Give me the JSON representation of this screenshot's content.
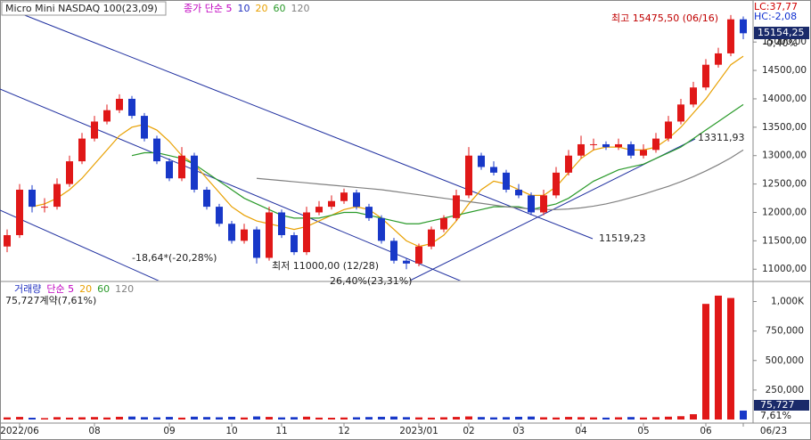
{
  "header": {
    "title": "Micro Mini NASDAQ 100(23,09)",
    "ma_legend": [
      {
        "text": "종가 단순 5",
        "color": "#c000c0"
      },
      {
        "text": "10",
        "color": "#2030c0"
      },
      {
        "text": "20",
        "color": "#e8a000"
      },
      {
        "text": "60",
        "color": "#2a9a2a"
      },
      {
        "text": "120",
        "color": "#808080"
      }
    ]
  },
  "chart_data": {
    "type": "candlestick",
    "up_color": "#e01818",
    "down_color": "#1838c8",
    "open": [
      11400,
      11600,
      12400,
      12100,
      12100,
      12500,
      12900,
      13300,
      13600,
      13800,
      14000,
      13700,
      13300,
      12900,
      12600,
      13000,
      12400,
      12100,
      11800,
      11500,
      11700,
      11200,
      12000,
      11600,
      11300,
      12000,
      12100,
      12200,
      12350,
      12100,
      11900,
      11500,
      11150,
      11100,
      11400,
      11700,
      11900,
      12300,
      13000,
      12800,
      12700,
      12400,
      12300,
      12000,
      12300,
      12700,
      13000,
      13200,
      13200,
      13150,
      13200,
      13000,
      13100,
      13300,
      13600,
      13900,
      14200,
      14600,
      14800,
      15400
    ],
    "high": [
      11700,
      12500,
      12480,
      12250,
      12600,
      13000,
      13400,
      13700,
      13900,
      14080,
      14050,
      13750,
      13350,
      12950,
      13150,
      13050,
      12450,
      12150,
      11850,
      11800,
      11750,
      12100,
      12050,
      11650,
      12100,
      12200,
      12300,
      12420,
      12400,
      12150,
      11950,
      11550,
      11200,
      11450,
      11750,
      11950,
      12400,
      13150,
      13050,
      12900,
      12750,
      12500,
      12350,
      12400,
      12800,
      13100,
      13350,
      13300,
      13250,
      13300,
      13250,
      13200,
      13400,
      13700,
      14000,
      14300,
      14700,
      14900,
      15475.5,
      15450
    ],
    "low": [
      11300,
      11550,
      12000,
      12000,
      12050,
      12450,
      12850,
      13250,
      13550,
      13750,
      13650,
      13250,
      12850,
      12550,
      12550,
      12350,
      12050,
      11750,
      11450,
      11450,
      11100,
      11150,
      11550,
      11250,
      11250,
      11950,
      12050,
      12150,
      12050,
      11850,
      11450,
      11100,
      11000,
      11050,
      11350,
      11650,
      11850,
      12250,
      12750,
      12650,
      12350,
      12250,
      11950,
      11950,
      12250,
      12650,
      12950,
      13100,
      13100,
      13100,
      12950,
      12950,
      13050,
      13250,
      13550,
      13850,
      14150,
      14550,
      14750,
      15050
    ],
    "close": [
      11600,
      12400,
      12100,
      12100,
      12500,
      12900,
      13300,
      13600,
      13800,
      14000,
      13700,
      13300,
      12900,
      12600,
      13000,
      12400,
      12100,
      11800,
      11500,
      11700,
      11200,
      12000,
      11600,
      11300,
      12000,
      12100,
      12200,
      12350,
      12100,
      11900,
      11500,
      11150,
      11100,
      11400,
      11700,
      11900,
      12300,
      13000,
      12800,
      12700,
      12400,
      12300,
      12000,
      12300,
      12700,
      13000,
      13200,
      13200,
      13150,
      13200,
      13000,
      13100,
      13300,
      13600,
      13900,
      14200,
      14600,
      14800,
      15400,
      15154.25
    ],
    "ma_series": [
      {
        "name": "20",
        "color": "#e8a000",
        "values": [
          null,
          null,
          12100,
          12150,
          12250,
          12400,
          12600,
          12850,
          13100,
          13350,
          13500,
          13550,
          13450,
          13250,
          13000,
          12850,
          12600,
          12350,
          12100,
          11950,
          11850,
          11800,
          11750,
          11700,
          11750,
          11850,
          11950,
          12050,
          12100,
          12050,
          11900,
          11700,
          11500,
          11400,
          11450,
          11600,
          11850,
          12150,
          12400,
          12550,
          12500,
          12400,
          12300,
          12300,
          12450,
          12700,
          12950,
          13100,
          13150,
          13150,
          13100,
          13100,
          13150,
          13300,
          13500,
          13750,
          14000,
          14300,
          14600,
          14750
        ]
      },
      {
        "name": "60",
        "color": "#2a9a2a",
        "values": [
          null,
          null,
          null,
          null,
          null,
          null,
          null,
          null,
          null,
          null,
          13000,
          13050,
          13050,
          13000,
          12950,
          12850,
          12700,
          12550,
          12400,
          12250,
          12150,
          12050,
          11950,
          11900,
          11900,
          11900,
          11950,
          12000,
          12000,
          11950,
          11900,
          11850,
          11800,
          11800,
          11850,
          11900,
          11950,
          12000,
          12050,
          12100,
          12100,
          12100,
          12050,
          12100,
          12150,
          12250,
          12400,
          12550,
          12650,
          12750,
          12800,
          12850,
          12950,
          13050,
          13150,
          13300,
          13450,
          13600,
          13750,
          13900
        ]
      },
      {
        "name": "120",
        "color": "#808080",
        "values": [
          null,
          null,
          null,
          null,
          null,
          null,
          null,
          null,
          null,
          null,
          null,
          null,
          null,
          null,
          null,
          null,
          null,
          null,
          null,
          null,
          12600,
          12580,
          12560,
          12540,
          12520,
          12500,
          12480,
          12460,
          12440,
          12420,
          12400,
          12370,
          12340,
          12310,
          12280,
          12250,
          12220,
          12190,
          12160,
          12130,
          12100,
          12080,
          12060,
          12050,
          12050,
          12060,
          12080,
          12110,
          12150,
          12200,
          12260,
          12320,
          12390,
          12460,
          12540,
          12630,
          12730,
          12840,
          12960,
          13100
        ]
      }
    ],
    "ylim": [
      10800,
      15740
    ],
    "yticks": [
      {
        "value": 11000,
        "label": "11000,00"
      },
      {
        "value": 11500,
        "label": "11500,00"
      },
      {
        "value": 12000,
        "label": "12000,00"
      },
      {
        "value": 12500,
        "label": "12500,00"
      },
      {
        "value": 13000,
        "label": "13000,00"
      },
      {
        "value": 13500,
        "label": "13500,00"
      },
      {
        "value": 14000,
        "label": "14000,00"
      },
      {
        "value": 14500,
        "label": "14500,00"
      },
      {
        "value": 15000,
        "label": "15000,00"
      }
    ],
    "xticks": [
      {
        "value": 1,
        "label": "2022/06"
      },
      {
        "value": 7,
        "label": "08"
      },
      {
        "value": 13,
        "label": "09"
      },
      {
        "value": 18,
        "label": "10"
      },
      {
        "value": 22,
        "label": "11"
      },
      {
        "value": 27,
        "label": "12"
      },
      {
        "value": 33,
        "label": "2023/01"
      },
      {
        "value": 37,
        "label": "02"
      },
      {
        "value": 41,
        "label": "03"
      },
      {
        "value": 46,
        "label": "04"
      },
      {
        "value": 51,
        "label": "05"
      },
      {
        "value": 56,
        "label": "06"
      },
      {
        "value": 59,
        "label": "06/23"
      }
    ],
    "annotations": {
      "high": "최고 15475,50 (06/16)",
      "low": "최저 11000,00 (12/28)",
      "drop": "-18,64*(-20,28%)",
      "rise": "26,40%(23,31%)",
      "line_a": "13311,93",
      "line_b": "11519,23",
      "lc": "LC:37,77",
      "hc": "HC:-2,08",
      "last": "15154,25",
      "change": "-0,40%"
    },
    "volume": {
      "legend": [
        {
          "text": "거래량",
          "color": "#2030c0"
        },
        {
          "text": "단순 5",
          "color": "#c000c0"
        },
        {
          "text": "20",
          "color": "#e8a000"
        },
        {
          "text": "60",
          "color": "#2a9a2a"
        },
        {
          "text": "120",
          "color": "#808080"
        }
      ],
      "summary": "75,727계약(7,61%)",
      "last": "75,727",
      "last_pct": "7,61%",
      "values": [
        18000,
        22000,
        15000,
        12000,
        20000,
        16000,
        19000,
        21000,
        17000,
        23000,
        25000,
        20000,
        18000,
        22000,
        16000,
        24000,
        21000,
        19000,
        23000,
        17000,
        26000,
        22000,
        18000,
        20000,
        24000,
        16000,
        15000,
        17000,
        19000,
        21000,
        23000,
        25000,
        20000,
        18000,
        16000,
        19000,
        22000,
        26000,
        21000,
        18000,
        20000,
        23000,
        25000,
        19000,
        17000,
        22000,
        20000,
        18000,
        16000,
        19000,
        21000,
        17000,
        20000,
        24000,
        28000,
        45000,
        980000,
        1050000,
        1030000,
        75727
      ],
      "ylim": [
        0,
        1140000
      ],
      "yticks": [
        {
          "value": 250000,
          "label": "250,000"
        },
        {
          "value": 500000,
          "label": "500,000"
        },
        {
          "value": 750000,
          "label": "750,000"
        },
        {
          "value": 1000000,
          "label": "1,000K"
        }
      ]
    }
  }
}
